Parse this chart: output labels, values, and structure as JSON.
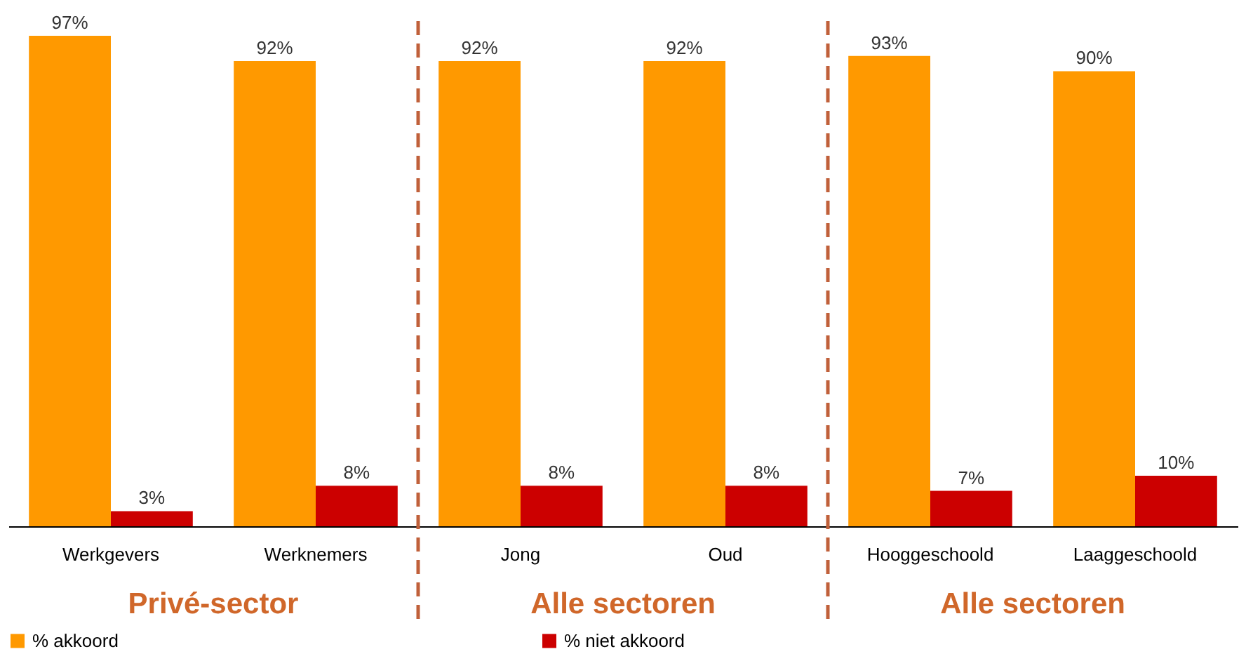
{
  "chart_data": {
    "type": "bar",
    "categories": [
      "Werkgevers",
      "Werknemers",
      "Jong",
      "Oud",
      "Hooggeschoold",
      "Laaggeschoold"
    ],
    "series": [
      {
        "name": "% akkoord",
        "color": "#ff9900",
        "values": [
          97,
          92,
          92,
          92,
          93,
          90
        ],
        "value_labels": [
          "97%",
          "92%",
          "92%",
          "92%",
          "93%",
          "90%"
        ]
      },
      {
        "name": "% niet akkoord",
        "color": "#cc0000",
        "values": [
          3,
          8,
          8,
          8,
          7,
          10
        ],
        "value_labels": [
          "3%",
          "8%",
          "8%",
          "8%",
          "7%",
          "10%"
        ]
      }
    ],
    "legend": "bottom",
    "grid": false,
    "annotations": [
      "Privé-sector",
      "Alle sectoren",
      "Alle sectoren"
    ]
  }
}
